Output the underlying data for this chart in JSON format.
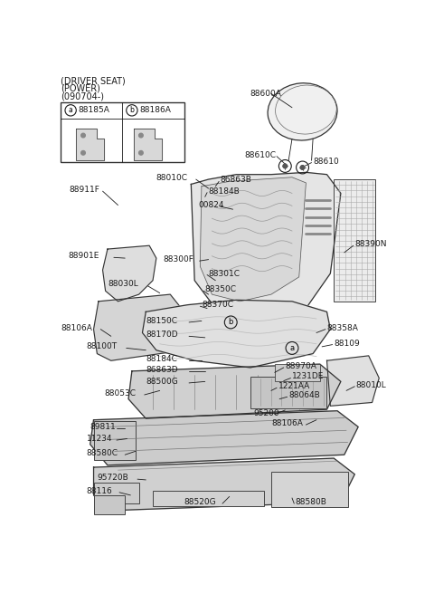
{
  "bg_color": "#ffffff",
  "title_lines": [
    "(DRIVER SEAT)",
    "(POWER)",
    "(090704-)"
  ],
  "fs": 6.5,
  "fs_small": 5.8
}
